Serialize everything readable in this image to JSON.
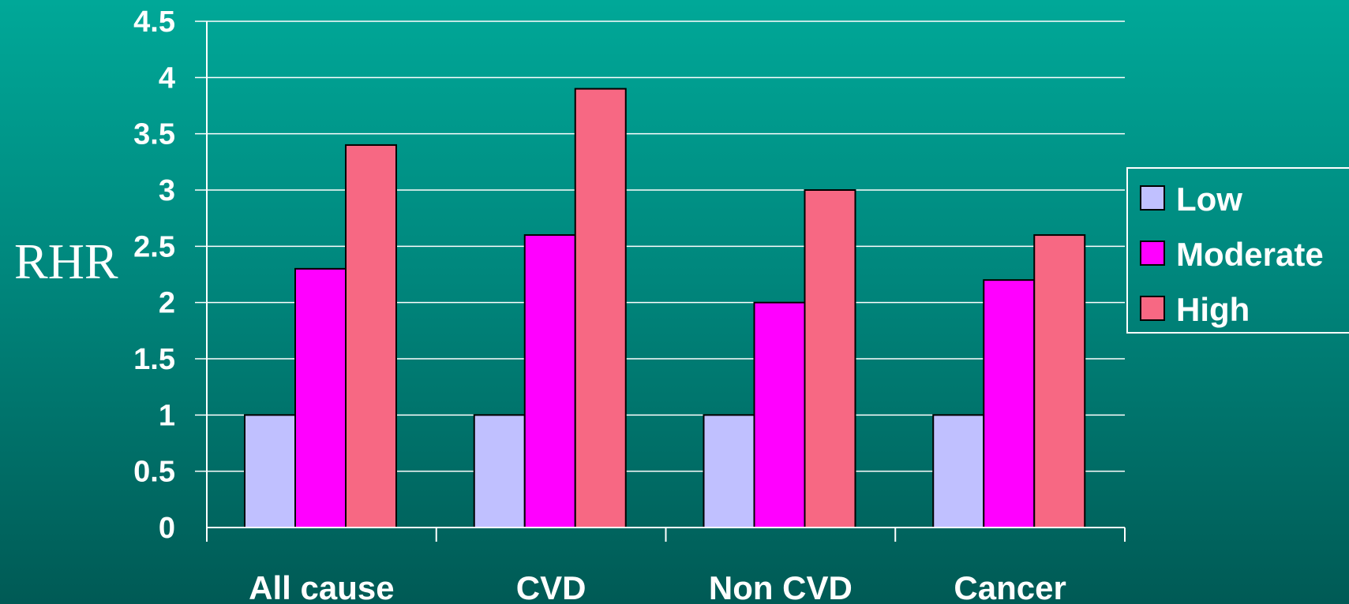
{
  "chart_data": {
    "type": "bar",
    "categories": [
      "All cause",
      "CVD",
      "Non CVD",
      "Cancer"
    ],
    "series": [
      {
        "name": "Low",
        "color": "#c0c0ff",
        "values": [
          1,
          1,
          1,
          1
        ]
      },
      {
        "name": "Moderate",
        "color": "#ff00ff",
        "values": [
          2.3,
          2.6,
          2.0,
          2.2
        ]
      },
      {
        "name": "High",
        "color": "#f76883",
        "values": [
          3.4,
          3.9,
          3.0,
          2.6
        ]
      }
    ],
    "ylabel": "RHR",
    "xlabel": "",
    "ylim": [
      0,
      4.5
    ],
    "yticks": [
      "0",
      "0.5",
      "1",
      "1.5",
      "2",
      "2.5",
      "3",
      "3.5",
      "4",
      "4.5"
    ],
    "grid": true,
    "legend_position": "right"
  }
}
